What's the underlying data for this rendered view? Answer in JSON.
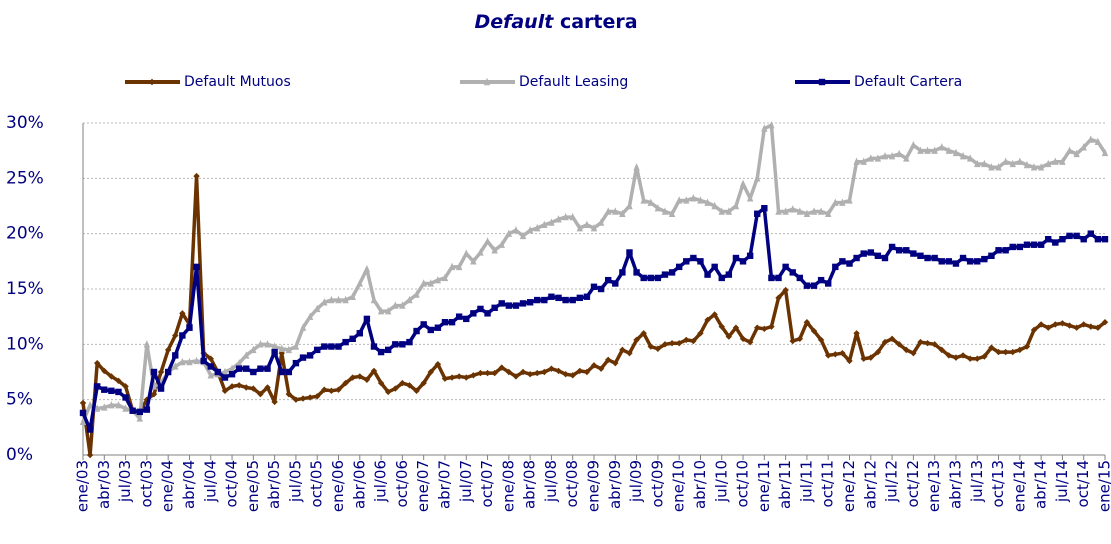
{
  "chart_data": {
    "type": "line",
    "title": [
      "Default",
      "cartera"
    ],
    "categories": [
      "ene/03",
      null,
      null,
      "abr/03",
      null,
      null,
      "jul/03",
      null,
      null,
      "oct/03",
      null,
      null,
      "ene/04",
      null,
      null,
      "abr/04",
      null,
      null,
      "jul/04",
      null,
      null,
      "oct/04",
      null,
      null,
      "ene/05",
      null,
      null,
      "abr/05",
      null,
      null,
      "jul/05",
      null,
      null,
      "oct/05",
      null,
      null,
      "ene/06",
      null,
      null,
      "abr/06",
      null,
      null,
      "jul/06",
      null,
      null,
      "oct/06",
      null,
      null,
      "ene/07",
      null,
      null,
      "abr/07",
      null,
      null,
      "jul/07",
      null,
      null,
      "oct/07",
      null,
      null,
      "ene/08",
      null,
      null,
      "abr/08",
      null,
      null,
      "jul/08",
      null,
      null,
      "oct/08",
      null,
      null,
      "ene/09",
      null,
      null,
      "abr/09",
      null,
      null,
      "jul/09",
      null,
      null,
      "oct/09",
      null,
      null,
      "ene/10",
      null,
      null,
      "abr/10",
      null,
      null,
      "jul/10",
      null,
      null,
      "oct/10",
      null,
      null,
      "ene/11",
      null,
      null,
      "abr/11",
      null,
      null,
      "jul/11",
      null,
      null,
      "oct/11",
      null,
      null,
      "ene/12",
      null,
      null,
      "abr/12",
      null,
      null,
      "jul/12",
      null,
      null,
      "oct/12",
      null,
      null,
      "ene/13",
      null,
      null,
      "abr/13",
      null,
      null,
      "jul/13",
      null,
      null,
      "oct/13",
      null,
      null,
      "ene/14",
      null,
      null,
      "abr/14",
      null,
      null,
      "jul/14",
      null,
      null,
      "oct/14",
      null,
      null,
      "ene/15"
    ],
    "series": [
      {
        "name": "Default Mutuos",
        "color": "#6b3300",
        "marker": "diamond",
        "values": [
          4.7,
          0,
          8.3,
          7.6,
          7.1,
          6.7,
          6.2,
          4.0,
          3.9,
          5.0,
          5.5,
          7.5,
          9.5,
          10.8,
          12.8,
          11.8,
          25.2,
          9.2,
          8.7,
          7.5,
          5.8,
          6.2,
          6.3,
          6.1,
          6.0,
          5.5,
          6.1,
          4.8,
          9.2,
          5.5,
          5.0,
          5.1,
          5.2,
          5.3,
          5.9,
          5.8,
          5.9,
          6.5,
          7.0,
          7.1,
          6.8,
          7.6,
          6.5,
          5.7,
          6.0,
          6.5,
          6.3,
          5.8,
          6.5,
          7.5,
          8.2,
          6.9,
          7.0,
          7.1,
          7.0,
          7.2,
          7.4,
          7.4,
          7.4,
          7.9,
          7.5,
          7.1,
          7.5,
          7.3,
          7.4,
          7.5,
          7.8,
          7.6,
          7.3,
          7.2,
          7.6,
          7.5,
          8.1,
          7.8,
          8.6,
          8.3,
          9.5,
          9.2,
          10.4,
          11.0,
          9.8,
          9.6,
          10.0,
          10.1,
          10.1,
          10.4,
          10.3,
          11.0,
          12.2,
          12.7,
          11.6,
          10.7,
          11.5,
          10.5,
          10.2,
          11.5,
          11.4,
          11.6,
          14.2,
          14.9,
          10.3,
          10.5,
          12.0,
          11.2,
          10.4,
          9.0,
          9.1,
          9.2,
          8.5,
          11.0,
          8.7,
          8.8,
          9.3,
          10.2,
          10.5,
          10.0,
          9.5,
          9.2,
          10.2,
          10.1,
          10.0,
          9.5,
          9.0,
          8.8,
          9.0,
          8.7,
          8.7,
          8.9,
          9.7,
          9.3,
          9.3,
          9.3,
          9.5,
          9.8,
          11.3,
          11.8,
          11.5,
          11.8,
          11.9,
          11.7,
          11.5,
          11.8,
          11.6,
          11.5,
          12.0
        ]
      },
      {
        "name": "Default Leasing",
        "color": "#b0b0b0",
        "marker": "triangle",
        "values": [
          3.0,
          4.5,
          4.2,
          4.3,
          4.5,
          4.5,
          4.2,
          4.0,
          3.3,
          10.0,
          6.2,
          6.5,
          7.5,
          8.0,
          8.4,
          8.4,
          8.5,
          8.4,
          7.2,
          7.3,
          7.5,
          7.8,
          8.3,
          9.0,
          9.5,
          10.0,
          10.0,
          9.8,
          9.6,
          9.5,
          9.8,
          11.5,
          12.5,
          13.2,
          13.8,
          14.0,
          14.0,
          14.0,
          14.3,
          15.5,
          16.8,
          14.0,
          13.0,
          13.0,
          13.5,
          13.5,
          14.0,
          14.5,
          15.5,
          15.5,
          15.8,
          16.0,
          17.0,
          17.0,
          18.2,
          17.5,
          18.3,
          19.3,
          18.5,
          19.0,
          20.0,
          20.3,
          19.8,
          20.3,
          20.5,
          20.8,
          21.0,
          21.3,
          21.5,
          21.5,
          20.5,
          20.8,
          20.5,
          21.0,
          22.0,
          22.0,
          21.8,
          22.5,
          26.0,
          23.0,
          22.8,
          22.3,
          22.0,
          21.8,
          23.0,
          23.0,
          23.2,
          23.0,
          22.8,
          22.5,
          22.0,
          22.0,
          22.5,
          24.5,
          23.2,
          25.0,
          29.5,
          29.8,
          22.0,
          22.0,
          22.2,
          22.0,
          21.8,
          22.0,
          22.0,
          21.8,
          22.8,
          22.8,
          23.0,
          26.5,
          26.5,
          26.8,
          26.8,
          27.0,
          27.0,
          27.2,
          26.8,
          28.0,
          27.5,
          27.5,
          27.5,
          27.8,
          27.5,
          27.3,
          27.0,
          26.8,
          26.3,
          26.3,
          26.0,
          26.0,
          26.5,
          26.3,
          26.5,
          26.2,
          26.0,
          26.0,
          26.3,
          26.5,
          26.5,
          27.5,
          27.2,
          27.8,
          28.5,
          28.3,
          27.3
        ]
      },
      {
        "name": "Default Cartera",
        "color": "#000080",
        "marker": "square",
        "values": [
          3.8,
          2.3,
          6.2,
          5.9,
          5.8,
          5.7,
          5.2,
          4.0,
          3.9,
          4.1,
          7.5,
          6.0,
          7.5,
          9.0,
          10.8,
          11.5,
          17.0,
          8.5,
          8.0,
          7.5,
          7.0,
          7.3,
          7.8,
          7.8,
          7.5,
          7.8,
          7.8,
          9.3,
          7.5,
          7.5,
          8.3,
          8.8,
          9.0,
          9.5,
          9.8,
          9.8,
          9.8,
          10.2,
          10.5,
          11.0,
          12.3,
          9.8,
          9.3,
          9.5,
          10.0,
          10.0,
          10.2,
          11.2,
          11.8,
          11.3,
          11.5,
          12.0,
          12.0,
          12.5,
          12.3,
          12.8,
          13.2,
          12.8,
          13.3,
          13.7,
          13.5,
          13.5,
          13.7,
          13.8,
          14.0,
          14.0,
          14.3,
          14.2,
          14.0,
          14.0,
          14.2,
          14.3,
          15.2,
          15.0,
          15.8,
          15.5,
          16.5,
          18.3,
          16.5,
          16.0,
          16.0,
          16.0,
          16.3,
          16.5,
          17.0,
          17.5,
          17.8,
          17.5,
          16.3,
          17.0,
          16.0,
          16.3,
          17.8,
          17.5,
          18.0,
          21.8,
          22.3,
          16.0,
          16.0,
          17.0,
          16.5,
          16.0,
          15.3,
          15.3,
          15.8,
          15.5,
          17.0,
          17.5,
          17.3,
          17.8,
          18.2,
          18.3,
          18.0,
          17.8,
          18.8,
          18.5,
          18.5,
          18.2,
          18.0,
          17.8,
          17.8,
          17.5,
          17.5,
          17.3,
          17.8,
          17.5,
          17.5,
          17.7,
          18.0,
          18.5,
          18.5,
          18.8,
          18.8,
          19.0,
          19.0,
          19.0,
          19.5,
          19.2,
          19.5,
          19.8,
          19.8,
          19.5,
          20.0,
          19.5,
          19.5
        ]
      }
    ],
    "ylim": [
      0,
      30
    ],
    "yticks": [
      {
        "value": 0,
        "label": "0%"
      },
      {
        "value": 5,
        "label": "5%"
      },
      {
        "value": 10,
        "label": "10%"
      },
      {
        "value": 15,
        "label": "15%"
      },
      {
        "value": 20,
        "label": "20%"
      },
      {
        "value": 25,
        "label": "25%"
      },
      {
        "value": 30,
        "label": "30%"
      }
    ],
    "grid": true,
    "legend": "top"
  }
}
